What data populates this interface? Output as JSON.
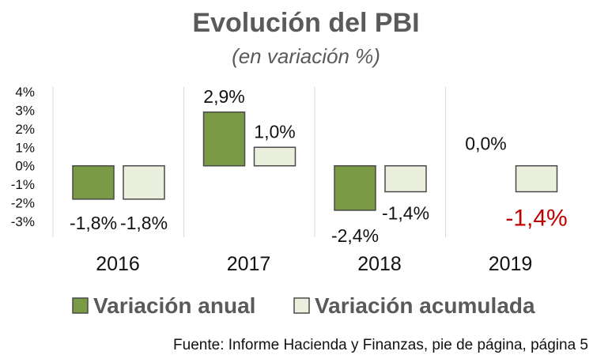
{
  "chart_data": {
    "type": "bar",
    "title": "Evolución del PBI",
    "subtitle": "(en variación %)",
    "categories": [
      "2016",
      "2017",
      "2018",
      "2019"
    ],
    "series": [
      {
        "name": "Variación anual",
        "values": [
          -1.8,
          2.9,
          -2.4,
          0.0
        ],
        "labels": [
          "-1,8%",
          "2,9%",
          "-2,4%",
          "0,0%"
        ],
        "color": "#7a9a45"
      },
      {
        "name": "Variación acumulada",
        "values": [
          -1.8,
          1.0,
          -1.4,
          -1.4
        ],
        "labels": [
          "-1,8%",
          "1,0%",
          "-1,4%",
          "-1,4%"
        ],
        "color": "#ebf0de"
      }
    ],
    "highlight_color": "#c00000",
    "y_ticks": [
      "4%",
      "3%",
      "2%",
      "1%",
      "0%",
      "-1%",
      "-2%",
      "-3%"
    ],
    "ylim": [
      -3,
      4
    ],
    "grid": false,
    "legend_position": "bottom",
    "source": "Fuente: Informe Hacienda y Finanzas, pie de página, página 5"
  }
}
